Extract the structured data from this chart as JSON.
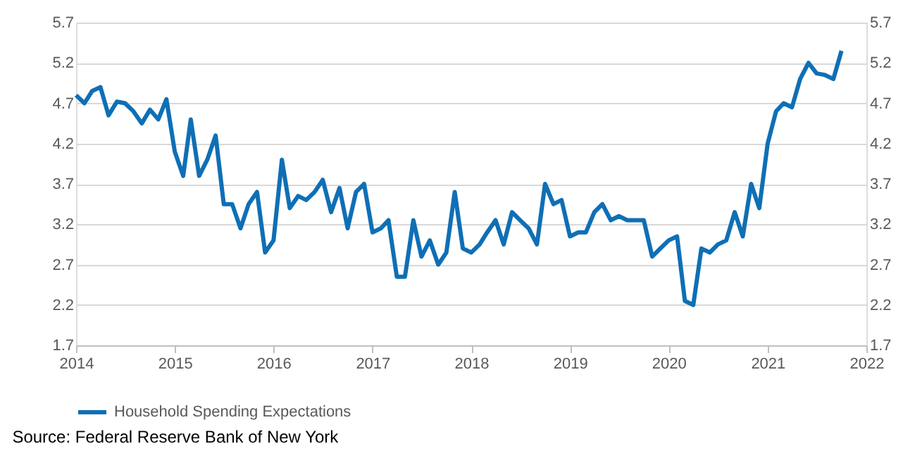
{
  "chart_data": {
    "type": "line",
    "x": [
      "2014-01",
      "2014-02",
      "2014-03",
      "2014-04",
      "2014-05",
      "2014-06",
      "2014-07",
      "2014-08",
      "2014-09",
      "2014-10",
      "2014-11",
      "2014-12",
      "2015-01",
      "2015-02",
      "2015-03",
      "2015-04",
      "2015-05",
      "2015-06",
      "2015-07",
      "2015-08",
      "2015-09",
      "2015-10",
      "2015-11",
      "2015-12",
      "2016-01",
      "2016-02",
      "2016-03",
      "2016-04",
      "2016-05",
      "2016-06",
      "2016-07",
      "2016-08",
      "2016-09",
      "2016-10",
      "2016-11",
      "2016-12",
      "2017-01",
      "2017-02",
      "2017-03",
      "2017-04",
      "2017-05",
      "2017-06",
      "2017-07",
      "2017-08",
      "2017-09",
      "2017-10",
      "2017-11",
      "2017-12",
      "2018-01",
      "2018-02",
      "2018-03",
      "2018-04",
      "2018-05",
      "2018-06",
      "2018-07",
      "2018-08",
      "2018-09",
      "2018-10",
      "2018-11",
      "2018-12",
      "2019-01",
      "2019-02",
      "2019-03",
      "2019-04",
      "2019-05",
      "2019-06",
      "2019-07",
      "2019-08",
      "2019-09",
      "2019-10",
      "2019-11",
      "2019-12",
      "2020-01",
      "2020-02",
      "2020-03",
      "2020-04",
      "2020-05",
      "2020-06",
      "2020-07",
      "2020-08",
      "2020-09",
      "2020-10",
      "2020-11",
      "2020-12",
      "2021-01",
      "2021-02",
      "2021-03",
      "2021-04",
      "2021-05",
      "2021-06",
      "2021-07",
      "2021-08",
      "2021-09",
      "2021-10"
    ],
    "series": [
      {
        "name": "Household Spending Expectations",
        "color": "#0f6fb5",
        "values": [
          4.8,
          4.7,
          4.85,
          4.9,
          4.55,
          4.72,
          4.7,
          4.6,
          4.45,
          4.62,
          4.5,
          4.75,
          4.1,
          3.8,
          4.5,
          3.8,
          4.0,
          4.3,
          3.45,
          3.45,
          3.15,
          3.45,
          3.6,
          2.85,
          3.0,
          4.0,
          3.4,
          3.55,
          3.5,
          3.6,
          3.75,
          3.35,
          3.65,
          3.15,
          3.6,
          3.7,
          3.1,
          3.15,
          3.25,
          2.55,
          2.55,
          3.25,
          2.8,
          3.0,
          2.7,
          2.85,
          3.6,
          2.9,
          2.85,
          2.95,
          3.1,
          3.25,
          2.95,
          3.35,
          3.25,
          3.15,
          2.95,
          3.7,
          3.45,
          3.5,
          3.05,
          3.1,
          3.1,
          3.35,
          3.45,
          3.25,
          3.3,
          3.25,
          3.25,
          3.25,
          2.8,
          2.9,
          3.0,
          3.05,
          2.25,
          2.2,
          2.9,
          2.85,
          2.95,
          3.0,
          3.35,
          3.05,
          3.7,
          3.4,
          4.2,
          4.6,
          4.7,
          4.65,
          5.0,
          5.2,
          5.07,
          5.05,
          5.0,
          5.35
        ]
      }
    ],
    "xlim": [
      "2014",
      "2022"
    ],
    "xticks": [
      "2014",
      "2015",
      "2016",
      "2017",
      "2018",
      "2019",
      "2020",
      "2021",
      "2022"
    ],
    "ylim": [
      1.7,
      5.7
    ],
    "yticks": [
      1.7,
      2.2,
      2.7,
      3.2,
      3.7,
      4.2,
      4.7,
      5.2,
      5.7
    ],
    "y2lim": [
      1.7,
      5.7
    ],
    "y2ticks": [
      1.7,
      2.2,
      2.7,
      3.2,
      3.7,
      4.2,
      4.7,
      5.2,
      5.7
    ],
    "grid": "y",
    "legend": "bottom",
    "line_style": "solid",
    "marker": "none",
    "annotations": [
      "Source: Federal Reserve Bank of New York"
    ]
  }
}
